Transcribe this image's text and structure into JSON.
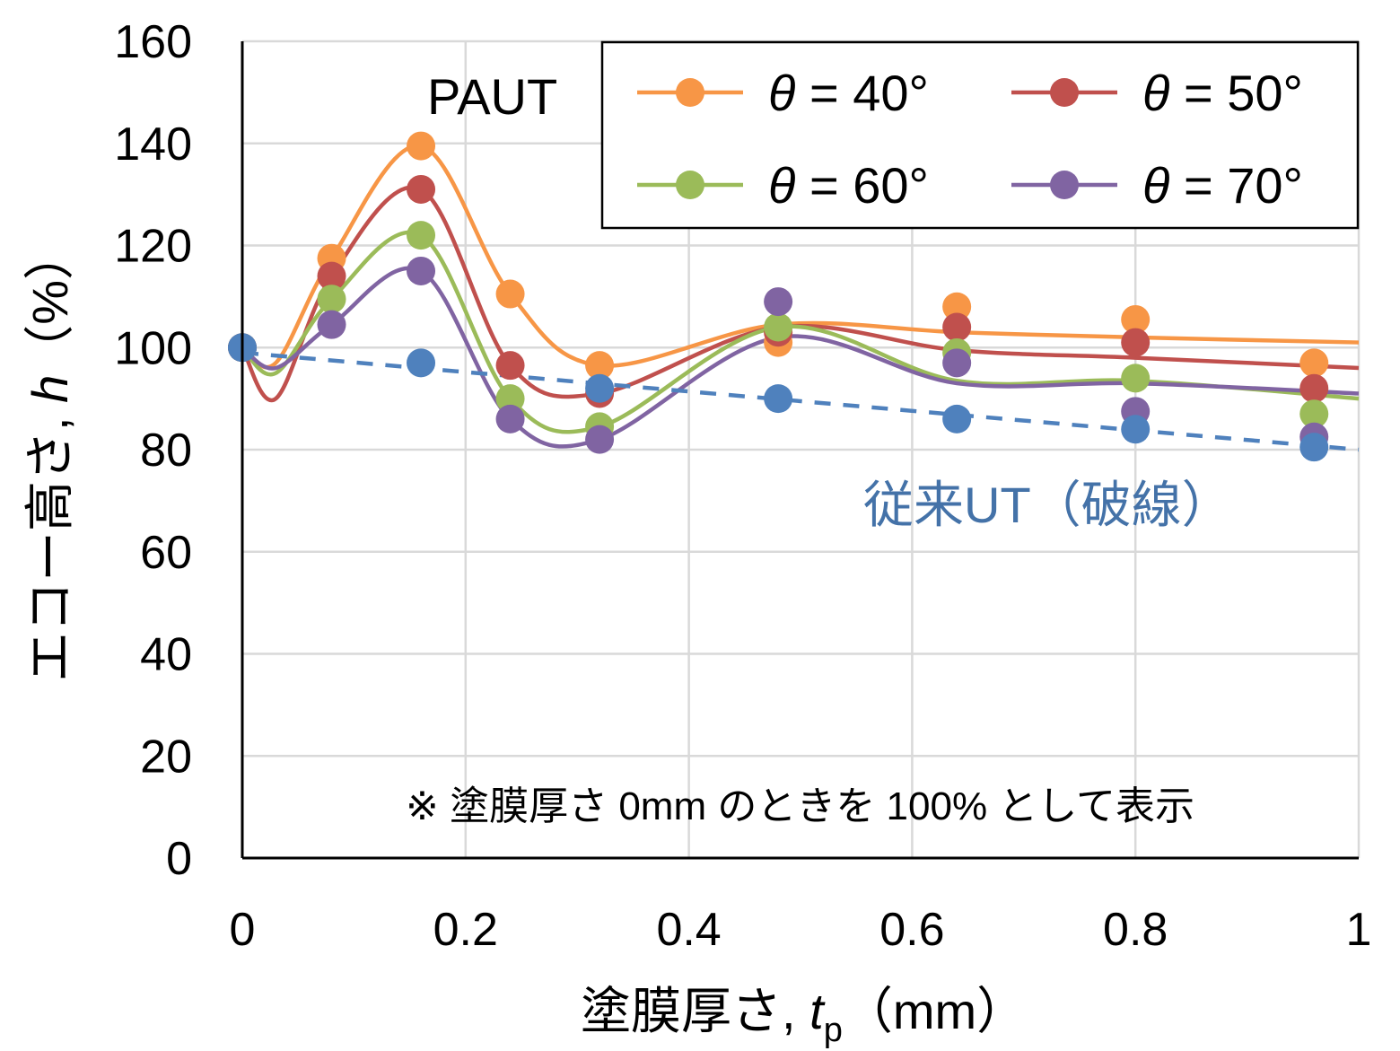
{
  "colors": {
    "theta40": "#F79646",
    "theta50": "#C0504D",
    "theta60": "#9BBB59",
    "theta70": "#8064A2",
    "conventional": "#4F81BD",
    "grid": "#D9D9D9",
    "axis": "#000000",
    "annotation_conventional": "#4472A8"
  },
  "chart_data": {
    "type": "scatter",
    "xlabel": {
      "main": "塗膜厚さ, ",
      "italic": "t",
      "sub": "p",
      "unit": "（mm）"
    },
    "ylabel": {
      "main": "エコー高さ, ",
      "italic": "h",
      "unit": "（%）"
    },
    "xlim": [
      0,
      1
    ],
    "ylim": [
      0,
      160
    ],
    "xticks": [
      "0",
      "0.2",
      "0.4",
      "0.6",
      "0.8",
      "1"
    ],
    "xtick_values": [
      0,
      0.2,
      0.4,
      0.6,
      0.8,
      1
    ],
    "yticks": [
      "0",
      "20",
      "40",
      "60",
      "80",
      "100",
      "120",
      "140",
      "160"
    ],
    "ytick_values": [
      0,
      20,
      40,
      60,
      80,
      100,
      120,
      140,
      160
    ],
    "grid": true,
    "legend_position": "top-right",
    "x": [
      0,
      0.08,
      0.16,
      0.24,
      0.32,
      0.48,
      0.64,
      0.8,
      0.96
    ],
    "series": [
      {
        "name": "40",
        "color_key": "theta40",
        "values": [
          100,
          117.5,
          139.5,
          110.5,
          96.5,
          101,
          108,
          105.5,
          97
        ],
        "curve": [
          [
            0,
            100
          ],
          [
            0.03,
            97
          ],
          [
            0.08,
            117.5
          ],
          [
            0.16,
            139.5
          ],
          [
            0.24,
            110.5
          ],
          [
            0.32,
            96.5
          ],
          [
            0.48,
            104.5
          ],
          [
            0.64,
            103
          ],
          [
            0.8,
            102
          ],
          [
            1,
            101
          ]
        ]
      },
      {
        "name": "50",
        "color_key": "theta50",
        "values": [
          100,
          114,
          131,
          96.5,
          91,
          103,
          104,
          101,
          92
        ],
        "curve": [
          [
            0,
            100
          ],
          [
            0.03,
            90
          ],
          [
            0.08,
            114
          ],
          [
            0.16,
            131
          ],
          [
            0.24,
            96.5
          ],
          [
            0.32,
            91
          ],
          [
            0.48,
            104
          ],
          [
            0.64,
            99.5
          ],
          [
            0.8,
            98
          ],
          [
            1,
            96
          ]
        ]
      },
      {
        "name": "60",
        "color_key": "theta60",
        "values": [
          100,
          109.5,
          122,
          90,
          84.5,
          104,
          99,
          94,
          87
        ],
        "curve": [
          [
            0,
            100
          ],
          [
            0.03,
            95
          ],
          [
            0.08,
            109.5
          ],
          [
            0.16,
            122
          ],
          [
            0.24,
            90
          ],
          [
            0.32,
            84.5
          ],
          [
            0.48,
            104
          ],
          [
            0.64,
            93.5
          ],
          [
            0.8,
            93.5
          ],
          [
            1,
            90
          ]
        ]
      },
      {
        "name": "70",
        "color_key": "theta70",
        "values": [
          100,
          104.5,
          115,
          86,
          82,
          109,
          97,
          87.5,
          82.5
        ],
        "curve": [
          [
            0,
            100
          ],
          [
            0.03,
            96
          ],
          [
            0.08,
            104.5
          ],
          [
            0.16,
            115
          ],
          [
            0.24,
            86
          ],
          [
            0.32,
            82
          ],
          [
            0.48,
            102
          ],
          [
            0.64,
            93
          ],
          [
            0.8,
            93
          ],
          [
            1,
            91
          ]
        ]
      },
      {
        "name": "従来UT",
        "color_key": "conventional",
        "dashed": true,
        "values": [
          100,
          null,
          97,
          null,
          92,
          90,
          86,
          84,
          80.5
        ],
        "line": [
          [
            0,
            99
          ],
          [
            1,
            80
          ]
        ]
      }
    ],
    "legend": {
      "entries": [
        {
          "theta": "θ",
          "text": " = 40°",
          "color_key": "theta40"
        },
        {
          "theta": "θ",
          "text": " = 50°",
          "color_key": "theta50"
        },
        {
          "theta": "θ",
          "text": " = 60°",
          "color_key": "theta60"
        },
        {
          "theta": "θ",
          "text": " = 70°",
          "color_key": "theta70"
        }
      ]
    },
    "annotations": {
      "paut": "PAUT",
      "conventional": "従来UT（破線）",
      "note": "※ 塗膜厚さ 0mm のときを 100% として表示"
    }
  }
}
